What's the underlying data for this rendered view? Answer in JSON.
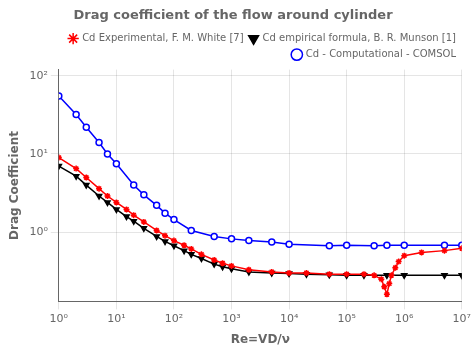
{
  "chart_data": {
    "type": "line",
    "title": "Drag coefficient of the flow around cylinder",
    "x_label": "Re=VD/ν",
    "y_label": "Drag Coefficient",
    "log": true,
    "grid": true,
    "legend": "upper right",
    "xlim": [
      1,
      10000000.0
    ],
    "ylim": [
      0.13,
      120
    ],
    "xticks": [
      {
        "value": 1,
        "label": "10⁰"
      },
      {
        "value": 10,
        "label": "10¹"
      },
      {
        "value": 100,
        "label": "10²"
      },
      {
        "value": 1000,
        "label": "10³"
      },
      {
        "value": 10000,
        "label": "10⁴"
      },
      {
        "value": 100000,
        "label": "10⁵"
      },
      {
        "value": 1000000,
        "label": "10⁶"
      },
      {
        "value": 10000000,
        "label": "10⁷"
      }
    ],
    "yticks": [
      {
        "value": 1,
        "label": "10⁰"
      },
      {
        "value": 10,
        "label": "10¹"
      },
      {
        "value": 100,
        "label": "10²"
      }
    ],
    "series": [
      {
        "name": "Cd Experimental, F. M. White [7]",
        "color": "red",
        "marker": "star",
        "x": [
          1,
          2,
          3,
          5,
          7,
          10,
          15,
          20,
          30,
          50,
          70,
          100,
          150,
          200,
          300,
          500,
          700,
          1000,
          2000,
          5000,
          10000,
          20000,
          50000,
          100000,
          200000,
          300000,
          400000,
          450000,
          500000,
          550000,
          600000,
          700000,
          800000,
          1000000,
          2000000,
          5000000,
          10000000
        ],
        "values": [
          9.0,
          6.5,
          5.0,
          3.6,
          2.9,
          2.4,
          1.95,
          1.65,
          1.35,
          1.05,
          0.9,
          0.78,
          0.68,
          0.61,
          0.52,
          0.44,
          0.4,
          0.37,
          0.33,
          0.31,
          0.3,
          0.3,
          0.29,
          0.29,
          0.29,
          0.28,
          0.25,
          0.2,
          0.16,
          0.22,
          0.28,
          0.35,
          0.42,
          0.5,
          0.55,
          0.58,
          0.62
        ]
      },
      {
        "name": "Cd empirical formula, B. R. Munson [1]",
        "color": "black",
        "marker": "triangle_down",
        "x": [
          1,
          2,
          3,
          5,
          7,
          10,
          15,
          20,
          30,
          50,
          70,
          100,
          150,
          200,
          300,
          500,
          700,
          1000,
          2000,
          5000,
          10000,
          20000,
          50000,
          100000,
          200000,
          500000,
          1000000,
          5000000,
          10000000
        ],
        "values": [
          7.0,
          5.2,
          4.0,
          2.9,
          2.4,
          1.95,
          1.58,
          1.38,
          1.12,
          0.88,
          0.76,
          0.67,
          0.58,
          0.52,
          0.46,
          0.39,
          0.36,
          0.34,
          0.31,
          0.3,
          0.295,
          0.29,
          0.285,
          0.28,
          0.28,
          0.28,
          0.28,
          0.28,
          0.28
        ]
      },
      {
        "name": "Cd - Computational - COMSOL",
        "color": "blue",
        "marker": "circle",
        "x": [
          1,
          2,
          3,
          5,
          7,
          10,
          20,
          30,
          50,
          70,
          100,
          200,
          500,
          1000,
          2000,
          5000,
          10000,
          50000,
          100000,
          300000,
          500000,
          1000000,
          5000000,
          10000000
        ],
        "values": [
          55,
          32,
          22,
          14,
          10,
          7.5,
          4.0,
          3.0,
          2.2,
          1.75,
          1.45,
          1.05,
          0.88,
          0.82,
          0.78,
          0.75,
          0.7,
          0.67,
          0.68,
          0.67,
          0.68,
          0.68,
          0.68,
          0.68
        ]
      }
    ]
  }
}
